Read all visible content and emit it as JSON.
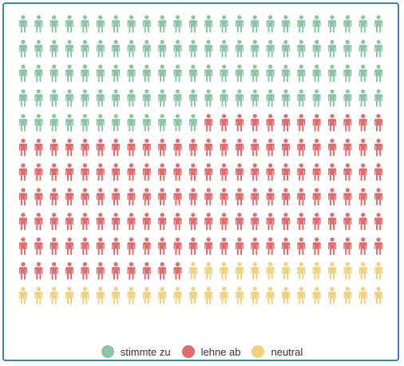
{
  "chart_data": {
    "type": "pictogram",
    "title": "",
    "icon": "person-icon",
    "grid": {
      "columns": 24,
      "rows": 12
    },
    "series": [
      {
        "name": "stimmte zu",
        "value": 108,
        "color": "#8cc5a3"
      },
      {
        "name": "lehne ab",
        "value": 143,
        "color": "#e06c6e"
      },
      {
        "name": "neutral",
        "value": 37,
        "color": "#efd17e"
      }
    ],
    "legend_position": "bottom-center"
  }
}
